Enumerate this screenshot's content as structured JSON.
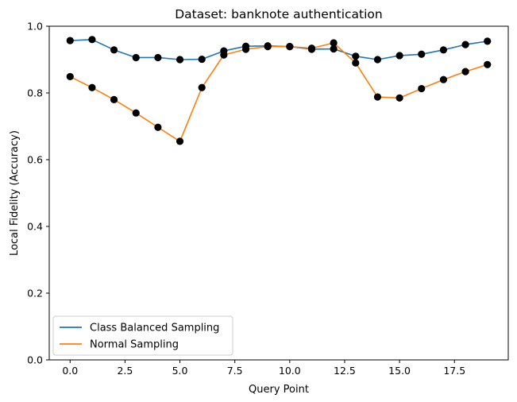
{
  "chart_data": {
    "type": "line",
    "title": "Dataset: banknote authentication",
    "xlabel": "Query Point",
    "ylabel": "Local Fidelity (Accuracy)",
    "x": [
      0,
      1,
      2,
      3,
      4,
      5,
      6,
      7,
      8,
      9,
      10,
      11,
      12,
      13,
      14,
      15,
      16,
      17,
      18,
      19
    ],
    "xlim": [
      -0.95,
      19.95
    ],
    "ylim": [
      0.0,
      1.0
    ],
    "xticks": [
      0.0,
      2.5,
      5.0,
      7.5,
      10.0,
      12.5,
      15.0,
      17.5
    ],
    "xtick_labels": [
      "0.0",
      "2.5",
      "5.0",
      "7.5",
      "10.0",
      "12.5",
      "15.0",
      "17.5"
    ],
    "yticks": [
      0.0,
      0.2,
      0.4,
      0.6,
      0.8,
      1.0
    ],
    "ytick_labels": [
      "0.0",
      "0.2",
      "0.4",
      "0.6",
      "0.8",
      "1.0"
    ],
    "grid": false,
    "legend_position": "lower-left",
    "marker_color": "#000000",
    "series": [
      {
        "name": "Class Balanced Sampling",
        "color": "#1f77b4",
        "values": [
          0.957,
          0.96,
          0.929,
          0.906,
          0.906,
          0.9,
          0.901,
          0.926,
          0.94,
          0.941,
          0.939,
          0.931,
          0.932,
          0.91,
          0.9,
          0.912,
          0.916,
          0.929,
          0.945,
          0.955
        ]
      },
      {
        "name": "Normal Sampling",
        "color": "#ff7f0e",
        "values": [
          0.849,
          0.816,
          0.78,
          0.74,
          0.697,
          0.655,
          0.816,
          0.914,
          0.931,
          0.939,
          0.939,
          0.934,
          0.95,
          0.89,
          0.788,
          0.785,
          0.813,
          0.84,
          0.864,
          0.885
        ]
      }
    ]
  }
}
